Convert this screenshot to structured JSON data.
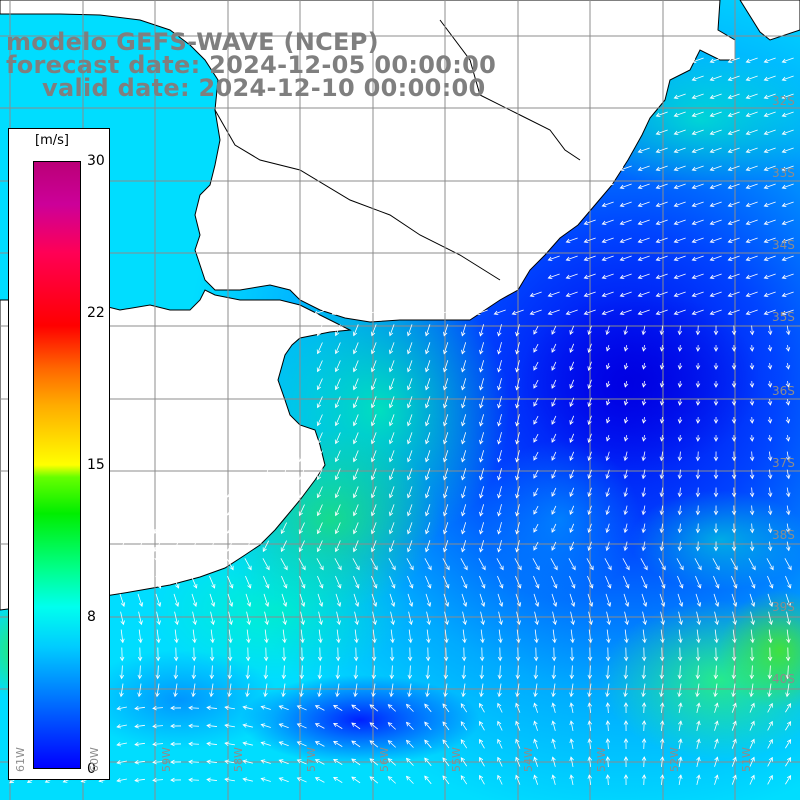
{
  "title": {
    "line1": "modelo GEFS-WAVE (NCEP)",
    "line2": "forecast date: 2024-12-05 00:00:00",
    "line3": "valid date: 2024-12-10 00:00:00"
  },
  "colorbar": {
    "unit": "[m/s]",
    "ticks": [
      "30",
      "22",
      "15",
      "8",
      "0"
    ],
    "tick_values": [
      30,
      22,
      15,
      8,
      0
    ],
    "range": [
      0,
      30
    ],
    "colors": [
      "#0000ff",
      "#00ccff",
      "#00ff88",
      "#00ee00",
      "#ffff00",
      "#ff6600",
      "#ff0000",
      "#bb0077"
    ]
  },
  "map": {
    "land_color": "#ffffff",
    "coastline_color": "#000000",
    "grid_color": "#8c8c8c",
    "arrow_color": "#ffffff",
    "lat_labels": [
      "32S",
      "33S",
      "34S",
      "35S",
      "36S",
      "37S",
      "38S",
      "39S",
      "40S"
    ],
    "lon_labels": [
      "61W",
      "60W",
      "59W",
      "58W",
      "57W",
      "56W",
      "55W",
      "54W",
      "53W",
      "52W",
      "51W"
    ]
  }
}
